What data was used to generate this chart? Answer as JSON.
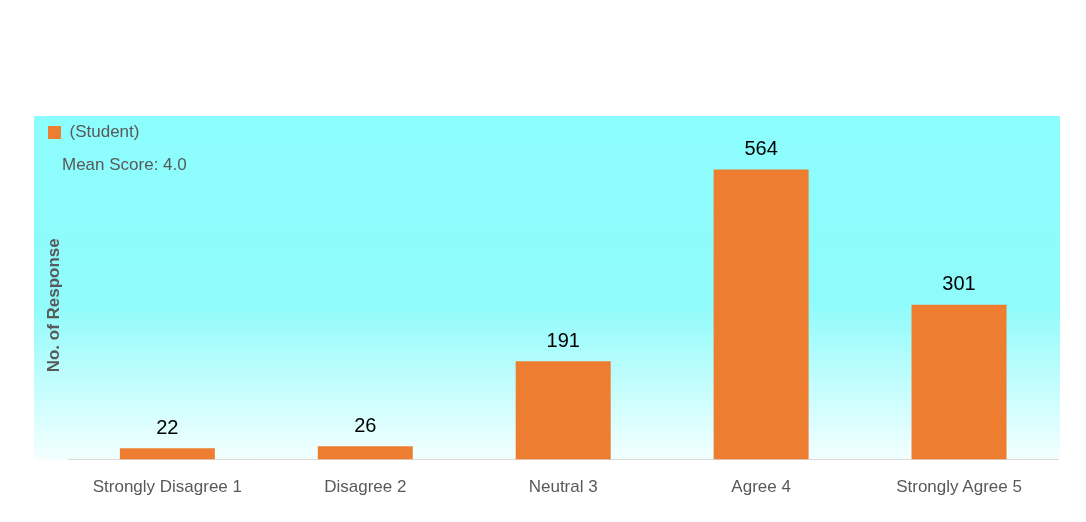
{
  "chart_data": {
    "type": "bar",
    "ylabel": "No. of Response",
    "categories": [
      "Strongly Disagree 1",
      "Disagree 2",
      "Neutral 3",
      "Agree 4",
      "Strongly Agree 5"
    ],
    "series": [
      {
        "name": "(Student)",
        "color": "#ed7d31",
        "values": [
          22,
          26,
          191,
          564,
          301
        ]
      }
    ],
    "annotations": [
      "Mean Score: 4.0"
    ],
    "data_labels": true,
    "legend": "top left",
    "grid": false
  }
}
